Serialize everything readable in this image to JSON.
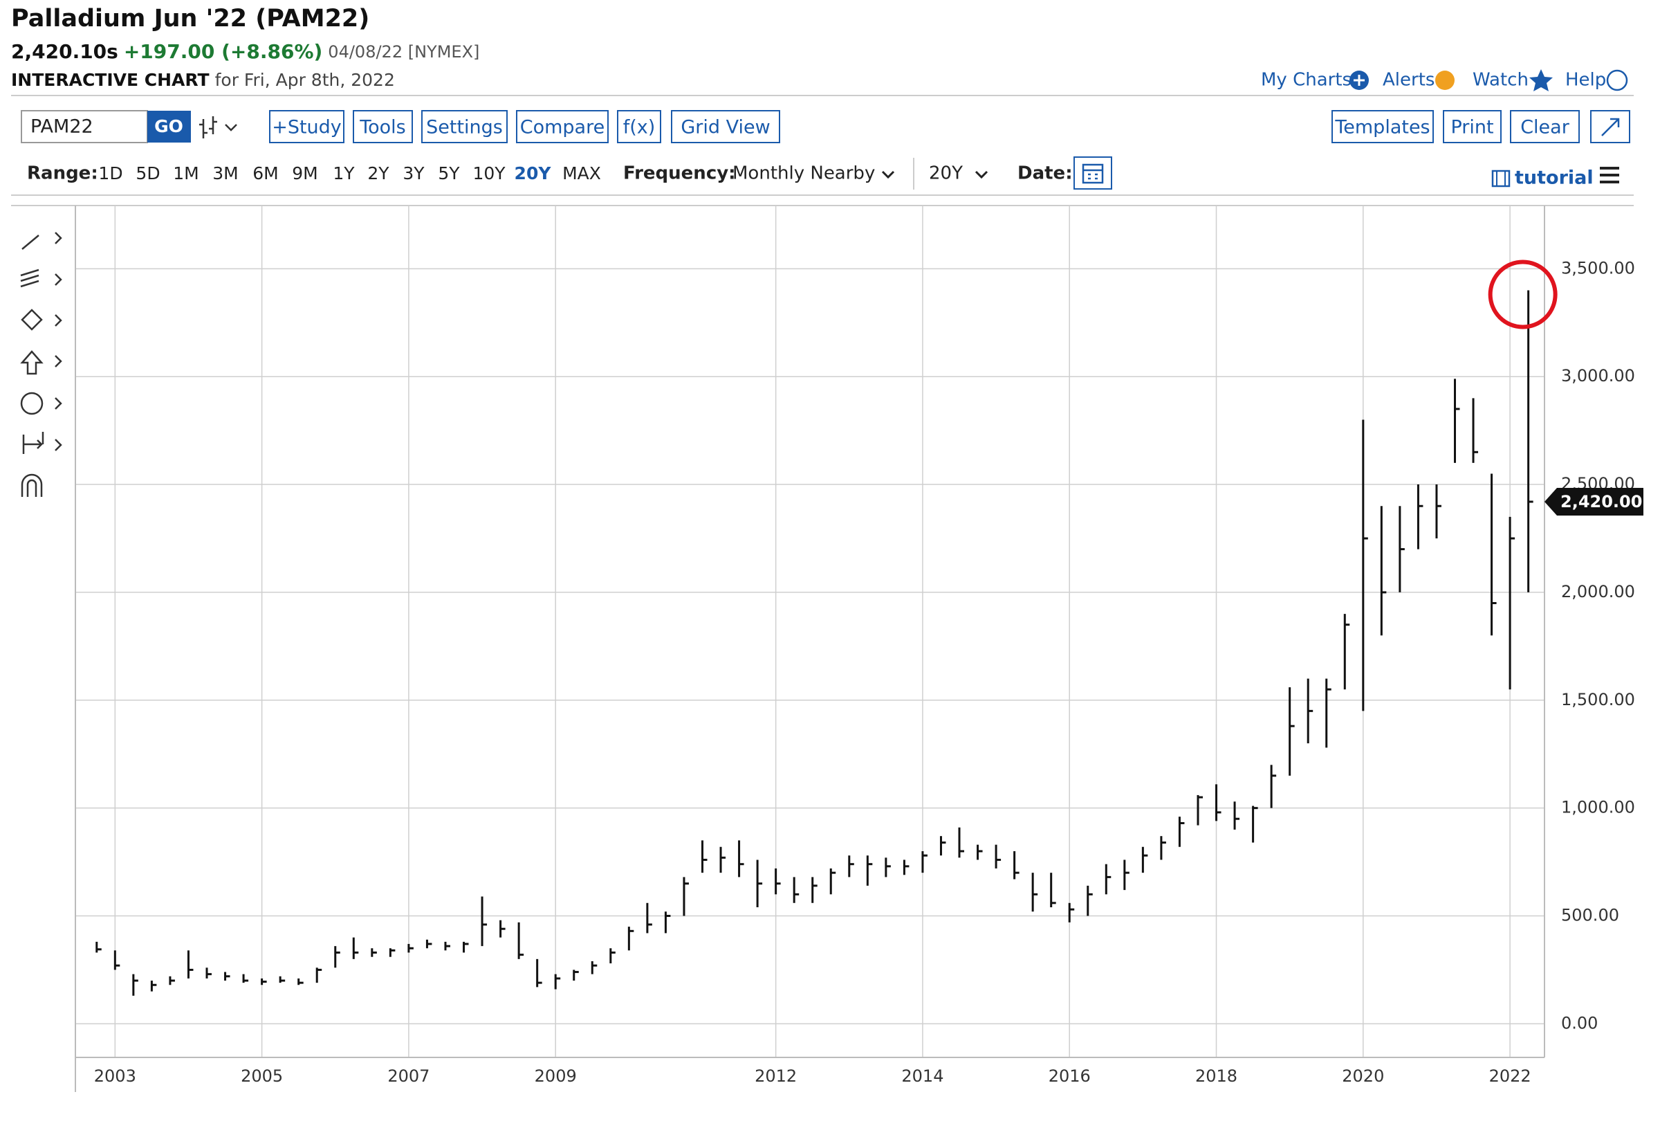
{
  "header": {
    "title": "Palladium Jun '22 (PAM22)",
    "price": "2,420.10s",
    "change": "+197.00 (+8.86%)",
    "date_exchange": "04/08/22 [NYMEX]",
    "chart_label": "INTERACTIVE CHART",
    "chart_date": "for Fri, Apr 8th, 2022"
  },
  "nav": [
    "My Charts",
    "Alerts",
    "Watch",
    "Help"
  ],
  "toolbar": {
    "symbol": "PAM22",
    "go": "GO",
    "left_buttons": [
      "+Study",
      "Tools",
      "Settings",
      "Compare",
      "f(x)",
      "Grid View"
    ],
    "right_buttons": [
      "Templates",
      "Print",
      "Clear"
    ]
  },
  "range_bar": {
    "range_label": "Range:",
    "ranges": [
      "1D",
      "5D",
      "1M",
      "3M",
      "6M",
      "9M",
      "1Y",
      "2Y",
      "3Y",
      "5Y",
      "10Y",
      "20Y",
      "MAX"
    ],
    "frequency_label": "Frequency:",
    "frequency": "Monthly Nearby",
    "period": "20Y",
    "date_label": "Date:",
    "tutorial": "tutorial"
  },
  "chart_data": {
    "type": "ohlc",
    "color": "#111111",
    "x": [
      2002.75,
      2003,
      2003.25,
      2003.5,
      2003.75,
      2004,
      2004.25,
      2004.5,
      2004.75,
      2005,
      2005.25,
      2005.5,
      2005.75,
      2006,
      2006.25,
      2006.5,
      2006.75,
      2007,
      2007.25,
      2007.5,
      2007.75,
      2008,
      2008.25,
      2008.5,
      2008.75,
      2009,
      2009.25,
      2009.5,
      2009.75,
      2010,
      2010.25,
      2010.5,
      2010.75,
      2011,
      2011.25,
      2011.5,
      2011.75,
      2012,
      2012.25,
      2012.5,
      2012.75,
      2013,
      2013.25,
      2013.5,
      2013.75,
      2014,
      2014.25,
      2014.5,
      2014.75,
      2015,
      2015.25,
      2015.5,
      2015.75,
      2016,
      2016.25,
      2016.5,
      2016.75,
      2017,
      2017.25,
      2017.5,
      2017.75,
      2018,
      2018.25,
      2018.5,
      2018.75,
      2019,
      2019.25,
      2019.5,
      2019.75,
      2020,
      2020.25,
      2020.5,
      2020.75,
      2021,
      2021.25,
      2021.5,
      2021.75,
      2022,
      2022.25
    ],
    "high": [
      380,
      340,
      230,
      200,
      220,
      340,
      260,
      240,
      230,
      210,
      220,
      210,
      260,
      360,
      400,
      350,
      350,
      370,
      390,
      380,
      380,
      590,
      480,
      470,
      300,
      230,
      250,
      290,
      350,
      450,
      560,
      520,
      680,
      850,
      820,
      850,
      760,
      720,
      680,
      680,
      720,
      780,
      780,
      770,
      760,
      800,
      870,
      910,
      830,
      830,
      800,
      700,
      700,
      560,
      640,
      740,
      760,
      820,
      870,
      960,
      1060,
      1110,
      1030,
      1010,
      1200,
      1560,
      1600,
      1600,
      1900,
      2800,
      2400,
      2400,
      2500,
      2500,
      2990,
      2900,
      2550,
      2350,
      3400
    ],
    "low": [
      330,
      250,
      130,
      150,
      180,
      210,
      210,
      200,
      190,
      180,
      190,
      180,
      190,
      260,
      300,
      310,
      310,
      330,
      350,
      340,
      330,
      360,
      400,
      300,
      170,
      160,
      200,
      230,
      280,
      340,
      420,
      420,
      500,
      700,
      700,
      680,
      540,
      600,
      560,
      560,
      600,
      680,
      640,
      680,
      690,
      700,
      780,
      770,
      760,
      720,
      670,
      520,
      540,
      470,
      500,
      600,
      620,
      700,
      760,
      820,
      920,
      940,
      900,
      840,
      1000,
      1150,
      1300,
      1280,
      1550,
      1450,
      1800,
      2000,
      2200,
      2250,
      2600,
      2600,
      1800,
      1550,
      2000
    ],
    "close": [
      345,
      270,
      200,
      180,
      200,
      250,
      230,
      220,
      200,
      195,
      200,
      190,
      250,
      330,
      330,
      330,
      340,
      350,
      370,
      360,
      370,
      460,
      440,
      320,
      190,
      210,
      240,
      270,
      330,
      430,
      460,
      500,
      650,
      760,
      770,
      740,
      650,
      650,
      600,
      640,
      700,
      740,
      740,
      730,
      730,
      780,
      840,
      800,
      800,
      760,
      700,
      600,
      560,
      530,
      600,
      680,
      700,
      780,
      840,
      930,
      1050,
      980,
      950,
      1000,
      1150,
      1380,
      1450,
      1550,
      1850,
      2250,
      2000,
      2200,
      2400,
      2400,
      2850,
      2650,
      1950,
      2250,
      2420
    ],
    "xlim": [
      2002.46,
      2022.47
    ],
    "xticks": [
      2003,
      2005,
      2007,
      2009,
      2012,
      2014,
      2016,
      2018,
      2020,
      2022
    ],
    "ylim": [
      -156,
      3793
    ],
    "yticks": [
      {
        "value": 0,
        "label": "0.00"
      },
      {
        "value": 500,
        "label": "500.00"
      },
      {
        "value": 1000,
        "label": "1,000.00"
      },
      {
        "value": 1500,
        "label": "1,500.00"
      },
      {
        "value": 2000,
        "label": "2,000.00"
      },
      {
        "value": 2500,
        "label": "2,500.00"
      },
      {
        "value": 3000,
        "label": "3,000.00"
      },
      {
        "value": 3500,
        "label": "3,500.00"
      }
    ],
    "grid": true,
    "last_price": {
      "value": 2420,
      "label": "2,420.00"
    }
  }
}
